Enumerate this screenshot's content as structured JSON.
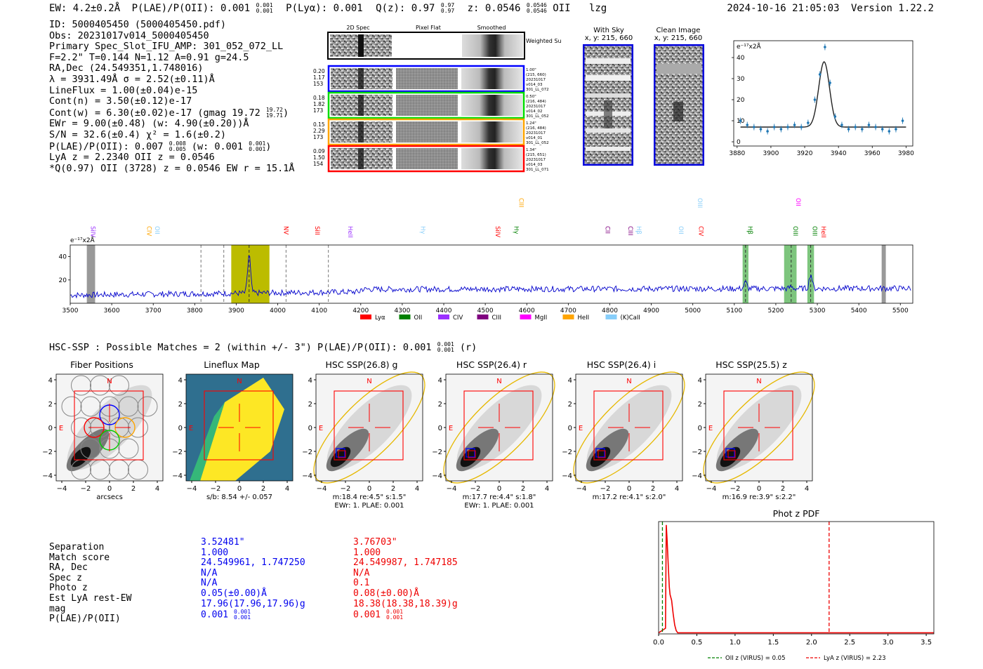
{
  "header": {
    "ew": "EW: 4.2±0.2Å",
    "plae": "P(LAE)/P(OII): 0.001 ",
    "plae_sup": "0.001",
    "plae_sub": "0.001",
    "plya": "P(Lyα): 0.001",
    "qz": "Q(z): 0.97 ",
    "qz_sup": "0.97",
    "qz_sub": "0.97",
    "z": "z: 0.0546 ",
    "z_sup": "0.0546",
    "z_sub": "0.0546",
    "line": "OII",
    "flag": "lzg",
    "timestamp": "2024-10-16 21:05:03",
    "version": "Version 1.22.2"
  },
  "info": {
    "id": "ID: 5000405450 (5000405450.pdf)",
    "obs": "Obs: 20231017v014_5000405450",
    "primary": "Primary Spec_Slot_IFU_AMP: 301_052_072_LL",
    "fparams": "F=2.2\"  T=0.144  N=1.12  A=0.91  g=24.5",
    "radec": "RA,Dec (24.549351,1.748016)",
    "lambda": "λ = 3931.49Å  σ = 2.52(±0.11)Å",
    "lineflux": "LineFlux = 1.00(±0.04)e-15",
    "contn": "Cont(n) = 3.50(±0.12)e-17",
    "contw": "Cont(w) = 6.30(±0.02)e-17 (gmag 19.72 ",
    "contw_sup": "19.72",
    "contw_sub": "19.71",
    "ewr": "EWr = 9.00(±0.48) (w: 4.90(±0.20))Å",
    "sn": "S/N = 32.6(±0.4)  χ² = 1.6(±0.2)",
    "plae": "P(LAE)/P(OII): 0.007 ",
    "plae_sup": "0.008",
    "plae_sub": "0.005",
    "plae_w": " (w: 0.001 ",
    "plae_w_sup": "0.001",
    "plae_w_sub": "0.001",
    "lya": "LyA z = 2.2340  OII z = 0.0546",
    "q": "*Q(0.97) OII (3728) z = 0.0546  EW r = 15.1Å"
  },
  "cutouts": {
    "col_titles": [
      "2D Spec",
      "Pixel Flat",
      "Smoothed"
    ],
    "weighted_sum": "Weighted Sum",
    "fibers": [
      {
        "left": [
          "0.20",
          "1.17",
          "153"
        ],
        "right": [
          "1.00\"",
          "(215, 660)",
          "20231017",
          "v014_03",
          "301_LL_072"
        ],
        "color": "#0000ff"
      },
      {
        "left": [
          "0.18",
          "1.82",
          "173"
        ],
        "right": [
          "0.50\"",
          "(216, 484)",
          "20231017",
          "v014_02",
          "301_LL_052"
        ],
        "color": "#00dd00"
      },
      {
        "left": [
          "0.15",
          "2.29",
          "173"
        ],
        "right": [
          "1.24\"",
          "(216, 484)",
          "20231017",
          "v014_01",
          "301_LL_052"
        ],
        "color": "#ffa500"
      },
      {
        "left": [
          "0.09",
          "1.50",
          "154"
        ],
        "right": [
          "1.34\"",
          "(215, 651)",
          "20231017",
          "v014_03",
          "301_LL_071"
        ],
        "color": "#ff0000"
      }
    ],
    "with_sky_title": "With Sky",
    "with_sky_xy": "x, y: 215, 660",
    "clean_title": "Clean Image",
    "clean_xy": "x, y: 215, 660"
  },
  "line_fit": {
    "unit_label": "e⁻¹⁷x2Å",
    "chart_data": {
      "type": "scatter",
      "x": [
        3882,
        3886,
        3890,
        3894,
        3898,
        3902,
        3906,
        3910,
        3914,
        3918,
        3922,
        3926,
        3929,
        3932,
        3935,
        3938,
        3942,
        3946,
        3950,
        3954,
        3958,
        3962,
        3966,
        3970,
        3974,
        3978
      ],
      "y": [
        10,
        8,
        7,
        6,
        5,
        7,
        6,
        7,
        8,
        7,
        9,
        20,
        32,
        45,
        28,
        12,
        8,
        6,
        7,
        6,
        8,
        7,
        6,
        5,
        6,
        10
      ],
      "fit_peak": 38,
      "fit_center": 3931.5,
      "fit_baseline": 7,
      "xlim": [
        3878,
        3984
      ],
      "ylim": [
        -2,
        48
      ],
      "xticks": [
        3880,
        3900,
        3920,
        3940,
        3960,
        3980
      ],
      "yticks": [
        0,
        10,
        20,
        30,
        40
      ]
    }
  },
  "spectrum": {
    "unit_label": "e⁻¹⁷x2Å",
    "chart_data": {
      "type": "line",
      "xlim": [
        3500,
        5530
      ],
      "ylim": [
        0,
        50
      ],
      "xticks": [
        3500,
        3600,
        3700,
        3800,
        3900,
        4000,
        4100,
        4200,
        4300,
        4400,
        4500,
        4600,
        4700,
        4800,
        4900,
        5000,
        5100,
        5200,
        5300,
        5400,
        5500
      ],
      "yticks": [
        20,
        40
      ],
      "peaks": [
        [
          3931,
          42
        ],
        [
          5127,
          18
        ],
        [
          5237,
          14
        ],
        [
          5284,
          25
        ]
      ],
      "line_labels": [
        {
          "text": "SiIV",
          "wave": 3545,
          "color": "#9b30ff",
          "tier": 0
        },
        {
          "text": "CIV",
          "wave": 3680,
          "color": "#ffa500",
          "tier": 0
        },
        {
          "text": "OII",
          "wave": 3700,
          "color": "#87cefa",
          "tier": 0
        },
        {
          "text": "NV",
          "wave": 4010,
          "color": "#ff0000",
          "tier": 0
        },
        {
          "text": "SiII",
          "wave": 4085,
          "color": "#ff0000",
          "tier": 0
        },
        {
          "text": "HeII",
          "wave": 4165,
          "color": "#9b30ff",
          "tier": 0
        },
        {
          "text": "Hγ",
          "wave": 4340,
          "color": "#87cefa",
          "tier": 0
        },
        {
          "text": "SiIV",
          "wave": 4520,
          "color": "#ff0000",
          "tier": 0
        },
        {
          "text": "Hγ",
          "wave": 4565,
          "color": "#008000",
          "tier": 0
        },
        {
          "text": "CIII",
          "wave": 4577,
          "color": "#ffa500",
          "tier": 1
        },
        {
          "text": "CII",
          "wave": 4785,
          "color": "#800080",
          "tier": 0
        },
        {
          "text": "CIII",
          "wave": 4840,
          "color": "#800080",
          "tier": 0
        },
        {
          "text": "Hβ",
          "wave": 4860,
          "color": "#87cefa",
          "tier": 0
        },
        {
          "text": "OII",
          "wave": 4962,
          "color": "#87cefa",
          "tier": 0
        },
        {
          "text": "OIII",
          "wave": 5007,
          "color": "#87cefa",
          "tier": 1
        },
        {
          "text": "CIV",
          "wave": 5010,
          "color": "#ff0000",
          "tier": 0
        },
        {
          "text": "Hβ",
          "wave": 5128,
          "color": "#008000",
          "tier": 0
        },
        {
          "text": "OIII",
          "wave": 5237,
          "color": "#008000",
          "tier": 0
        },
        {
          "text": "OII",
          "wave": 5244,
          "color": "#ff00ff",
          "tier": 1
        },
        {
          "text": "OIII",
          "wave": 5284,
          "color": "#008000",
          "tier": 0
        },
        {
          "text": "HeII",
          "wave": 5305,
          "color": "#ff0000",
          "tier": 0
        }
      ],
      "legend": [
        {
          "label": "Lyα",
          "color": "#ff0000"
        },
        {
          "label": "OII",
          "color": "#008000"
        },
        {
          "label": "CIV",
          "color": "#9b30ff"
        },
        {
          "label": "CIII",
          "color": "#800080"
        },
        {
          "label": "MgII",
          "color": "#ff00ff"
        },
        {
          "label": "HeII",
          "color": "#ffa500"
        },
        {
          "label": "(K)CaII",
          "color": "#87cefa"
        }
      ]
    }
  },
  "hsc": {
    "header": "HSC-SSP : Possible Matches = 2 (within +/- 3\")  P(LAE)/P(OII): 0.001 ",
    "header_sup": "0.001",
    "header_sub": "0.001",
    "header_tail": " (r)",
    "panels": [
      {
        "title": "Fiber Positions",
        "cap1": "arcsecs",
        "cap2": ""
      },
      {
        "title": "Lineflux Map",
        "cap1": "s/b: 8.54 +/- 0.057",
        "cap2": ""
      },
      {
        "title": "HSC SSP(26.8) g",
        "cap1": "m:18.4  re:4.5\"  s:1.5\"",
        "cap2": "EWr: 1. PLAE: 0.001"
      },
      {
        "title": "HSC SSP(26.4) r",
        "cap1": "m:17.7  re:4.4\"  s:1.8\"",
        "cap2": "EWr: 1. PLAE: 0.001"
      },
      {
        "title": "HSC SSP(26.4) i",
        "cap1": "m:17.2  re:4.1\"  s:2.0\"",
        "cap2": ""
      },
      {
        "title": "HSC SSP(25.5) z",
        "cap1": "m:16.9  re:3.9\"  s:2.2\"",
        "cap2": ""
      }
    ],
    "n_label": "N",
    "e_label": "E",
    "axis_ticks": [
      "4",
      "2",
      "0",
      "−2",
      "−4"
    ],
    "x_ticks": [
      "−4",
      "−2",
      "0",
      "2",
      "4"
    ]
  },
  "matches": {
    "labels": [
      "Separation",
      "Match score",
      "RA, Dec",
      "Spec z",
      "Photo z",
      "Est LyA rest-EW",
      "mag",
      "P(LAE)/P(OII)"
    ],
    "blue": [
      "3.52481\"",
      "1.000",
      "24.549961, 1.747250",
      "N/A",
      "N/A",
      "0.05(±0.00)Å",
      "17.96(17.96,17.96)g",
      "0.001 "
    ],
    "blue_sup": "0.001",
    "blue_sub": "0.001",
    "red": [
      "3.76703\"",
      "1.000",
      "24.549987, 1.747185",
      "N/A",
      "0.1",
      "0.08(±0.00)Å",
      "18.38(18.38,18.39)g",
      "0.001 "
    ],
    "red_sup": "0.001",
    "red_sub": "0.001"
  },
  "photz": {
    "title": "Phot z PDF",
    "chart_data": {
      "type": "line",
      "xlim": [
        0,
        3.6
      ],
      "ylim": [
        0,
        1.0
      ],
      "xticks": [
        "0.0",
        "0.5",
        "1.0",
        "1.5",
        "2.0",
        "2.5",
        "3.0",
        "3.5"
      ],
      "pdf_x": [
        0,
        0.09,
        0.1,
        0.11,
        0.12,
        0.13,
        0.14,
        0.15,
        0.17,
        0.19,
        0.21,
        0.23,
        0.25,
        0.3,
        3.6
      ],
      "pdf_y": [
        0.01,
        0.05,
        0.97,
        0.85,
        0.7,
        0.55,
        0.42,
        0.35,
        0.3,
        0.18,
        0.08,
        0.03,
        0.01,
        0.01,
        0.01
      ],
      "oii_z": 0.05,
      "lya_z": 2.23,
      "legend_oii": "OII z (VIRUS) = 0.05",
      "legend_lya": "LyA z (VIRUS) = 2.23"
    }
  }
}
